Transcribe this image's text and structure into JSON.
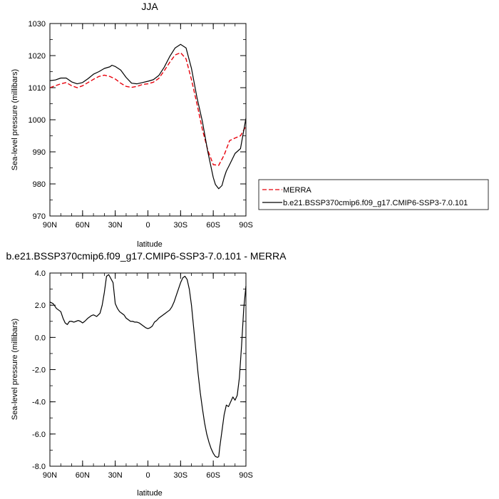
{
  "chart_data": [
    {
      "type": "line",
      "title": "JJA",
      "xlabel": "latitude",
      "ylabel": "Sea-level pressure (millibars)",
      "xlim": [
        -90,
        90
      ],
      "ylim": [
        970,
        1030
      ],
      "xticks": [
        {
          "value": -90,
          "label": "90N"
        },
        {
          "value": -60,
          "label": "60N"
        },
        {
          "value": -30,
          "label": "30N"
        },
        {
          "value": 0,
          "label": "0"
        },
        {
          "value": 30,
          "label": "30S"
        },
        {
          "value": 60,
          "label": "60S"
        },
        {
          "value": 90,
          "label": "90S"
        }
      ],
      "yticks": [
        {
          "value": 970,
          "label": "970"
        },
        {
          "value": 980,
          "label": "980"
        },
        {
          "value": 990,
          "label": "990"
        },
        {
          "value": 1000,
          "label": "1000"
        },
        {
          "value": 1010,
          "label": "1010"
        },
        {
          "value": 1020,
          "label": "1020"
        },
        {
          "value": 1030,
          "label": "1030"
        }
      ],
      "legend": "right",
      "series": [
        {
          "name": "MERRA",
          "color": "#e8000b",
          "dash": "dashed",
          "x": [
            -90,
            -85,
            -80,
            -75,
            -70,
            -65,
            -60,
            -55,
            -50,
            -45,
            -40,
            -35,
            -30,
            -25,
            -20,
            -15,
            -10,
            -5,
            0,
            5,
            10,
            15,
            20,
            25,
            30,
            35,
            40,
            45,
            50,
            55,
            60,
            65,
            70,
            75,
            80,
            85,
            90
          ],
          "y": [
            1010,
            1010.6,
            1011.2,
            1011.6,
            1010.6,
            1010,
            1010.6,
            1011.6,
            1012.6,
            1013.5,
            1013.9,
            1013.5,
            1012.7,
            1011.4,
            1010.4,
            1010.1,
            1010.4,
            1011,
            1011.2,
            1011.7,
            1012.9,
            1015.3,
            1017.9,
            1020.2,
            1020.9,
            1019,
            1012.5,
            1005,
            997,
            990.5,
            986,
            985.8,
            989,
            993.5,
            994.3,
            995,
            998
          ]
        },
        {
          "name": "b.e21.BSSP370cmip6.f09_g17.CMIP6-SSP3-7.0.101",
          "color": "#000000",
          "dash": "solid",
          "x": [
            -90,
            -85,
            -80,
            -75,
            -70,
            -65,
            -60,
            -55,
            -50,
            -45,
            -40,
            -35,
            -33,
            -30,
            -25,
            -20,
            -15,
            -10,
            -5,
            0,
            5,
            10,
            15,
            20,
            25,
            30,
            35,
            40,
            45,
            50,
            55,
            60,
            62,
            65,
            68,
            70,
            72,
            75,
            80,
            85,
            90
          ],
          "y": [
            1012.2,
            1012.4,
            1013,
            1013,
            1011.8,
            1011.2,
            1011.6,
            1012.8,
            1014.2,
            1015,
            1016,
            1016.5,
            1017,
            1016.6,
            1015.5,
            1013.2,
            1011.4,
            1011.2,
            1011.6,
            1012,
            1012.5,
            1013.8,
            1016.4,
            1019.7,
            1022.4,
            1023.5,
            1022.4,
            1016,
            1007,
            999.5,
            990,
            982,
            979.8,
            978.5,
            979.5,
            982,
            984,
            986,
            989.5,
            991,
            1000.5
          ]
        }
      ]
    },
    {
      "type": "line",
      "title": "b.e21.BSSP370cmip6.f09_g17.CMIP6-SSP3-7.0.101 - MERRA",
      "xlabel": "latitude",
      "ylabel": "Sea-level pressure (millibars)",
      "xlim": [
        -90,
        90
      ],
      "ylim": [
        -8,
        4
      ],
      "xticks": [
        {
          "value": -90,
          "label": "90N"
        },
        {
          "value": -60,
          "label": "60N"
        },
        {
          "value": -30,
          "label": "30N"
        },
        {
          "value": 0,
          "label": "0"
        },
        {
          "value": 30,
          "label": "30S"
        },
        {
          "value": 60,
          "label": "60S"
        },
        {
          "value": 90,
          "label": "90S"
        }
      ],
      "yticks": [
        {
          "value": -8,
          "label": "-8.0"
        },
        {
          "value": -6,
          "label": "-6.0"
        },
        {
          "value": -4,
          "label": "-4.0"
        },
        {
          "value": -2,
          "label": "-2.0"
        },
        {
          "value": 0,
          "label": "0.0"
        },
        {
          "value": 2,
          "label": "2.0"
        },
        {
          "value": 4,
          "label": "4.0"
        }
      ],
      "series": [
        {
          "color": "#000000",
          "dash": "solid",
          "x": [
            -90,
            -87,
            -84,
            -82,
            -80,
            -78,
            -76,
            -74,
            -72,
            -70,
            -68,
            -66,
            -64,
            -62,
            -60,
            -58,
            -55,
            -52,
            -50,
            -47,
            -44,
            -42,
            -40,
            -38,
            -36,
            -34,
            -32,
            -30,
            -28,
            -26,
            -24,
            -22,
            -20,
            -18,
            -16,
            -14,
            -12,
            -10,
            -8,
            -6,
            -4,
            -2,
            0,
            2,
            4,
            6,
            8,
            10,
            12,
            14,
            16,
            18,
            20,
            22,
            24,
            26,
            28,
            30,
            32,
            34,
            36,
            38,
            40,
            42,
            44,
            46,
            48,
            50,
            52,
            54,
            56,
            58,
            60,
            62,
            64,
            65,
            66,
            68,
            70,
            72,
            74,
            76,
            78,
            80,
            82,
            84,
            86,
            88,
            90
          ],
          "y": [
            2.2,
            2.1,
            1.8,
            1.7,
            1.6,
            1.2,
            0.9,
            0.8,
            1.0,
            1.0,
            0.95,
            1.0,
            1.05,
            1.0,
            0.9,
            1.0,
            1.2,
            1.35,
            1.4,
            1.3,
            1.5,
            2.0,
            2.8,
            3.8,
            3.9,
            3.65,
            3.4,
            2.1,
            1.8,
            1.6,
            1.5,
            1.4,
            1.2,
            1.1,
            1.0,
            1.0,
            0.95,
            0.95,
            0.9,
            0.8,
            0.7,
            0.6,
            0.55,
            0.6,
            0.7,
            0.95,
            1.05,
            1.2,
            1.3,
            1.4,
            1.5,
            1.6,
            1.7,
            1.9,
            2.2,
            2.6,
            3.0,
            3.4,
            3.7,
            3.8,
            3.6,
            3.0,
            2.0,
            0.6,
            -0.8,
            -2.2,
            -3.4,
            -4.4,
            -5.3,
            -6.0,
            -6.5,
            -6.9,
            -7.2,
            -7.4,
            -7.45,
            -7.4,
            -6.8,
            -5.8,
            -4.8,
            -4.2,
            -4.3,
            -4.0,
            -3.7,
            -3.9,
            -3.6,
            -2.5,
            -0.5,
            1.8,
            3.2
          ]
        }
      ]
    }
  ]
}
